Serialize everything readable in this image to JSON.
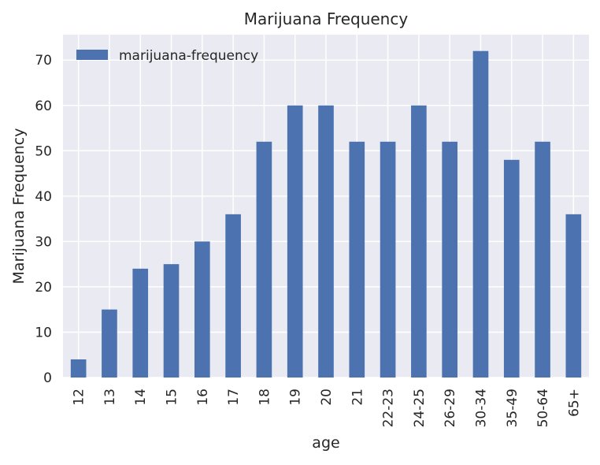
{
  "chart_data": {
    "type": "bar",
    "title": "Marijuana Frequency",
    "xlabel": "age",
    "ylabel": "Marijuana Frequency",
    "categories": [
      "12",
      "13",
      "14",
      "15",
      "16",
      "17",
      "18",
      "19",
      "20",
      "21",
      "22-23",
      "24-25",
      "26-29",
      "30-34",
      "35-49",
      "50-64",
      "65+"
    ],
    "series": [
      {
        "name": "marijuana-frequency",
        "values": [
          4,
          15,
          24,
          25,
          30,
          36,
          52,
          60,
          60,
          52,
          52,
          60,
          52,
          72,
          48,
          52,
          36
        ]
      }
    ],
    "ylim": [
      0,
      75.6
    ],
    "yticks": [
      0,
      10,
      20,
      30,
      40,
      50,
      60,
      70
    ],
    "grid": true,
    "legend_position": "top-left",
    "colors": {
      "bar": "#4c72b0",
      "plot_background": "#eaeaf2",
      "grid": "#ffffff",
      "text": "#262626"
    }
  }
}
